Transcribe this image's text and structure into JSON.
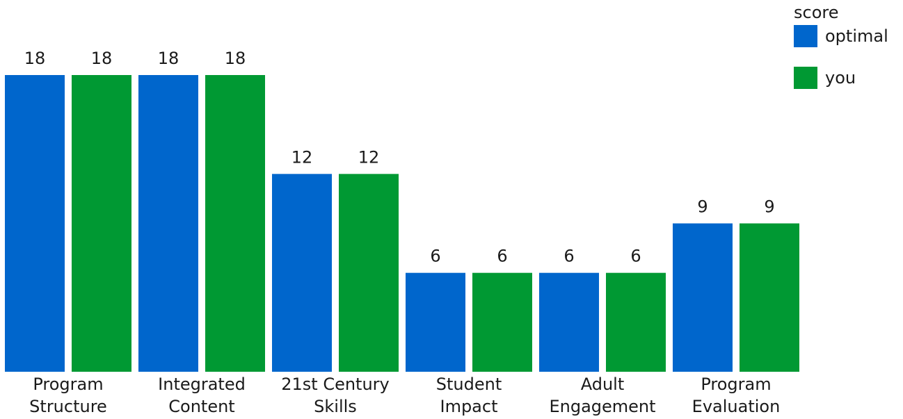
{
  "chart_data": {
    "type": "bar",
    "categories": [
      [
        "Program",
        "Structure"
      ],
      [
        "Integrated",
        "Content"
      ],
      [
        "21st Century",
        "Skills"
      ],
      [
        "Student",
        "Impact"
      ],
      [
        "Adult",
        "Engagement"
      ],
      [
        "Program",
        "Evaluation"
      ]
    ],
    "series": [
      {
        "name": "optimal",
        "color": "#0066cc",
        "values": [
          18,
          18,
          12,
          6,
          6,
          9
        ]
      },
      {
        "name": "you",
        "color": "#009933",
        "values": [
          18,
          18,
          12,
          6,
          6,
          9
        ]
      }
    ],
    "legend": {
      "title": "score",
      "position": "top-right"
    },
    "ylim": [
      0,
      18
    ],
    "grid": false
  }
}
